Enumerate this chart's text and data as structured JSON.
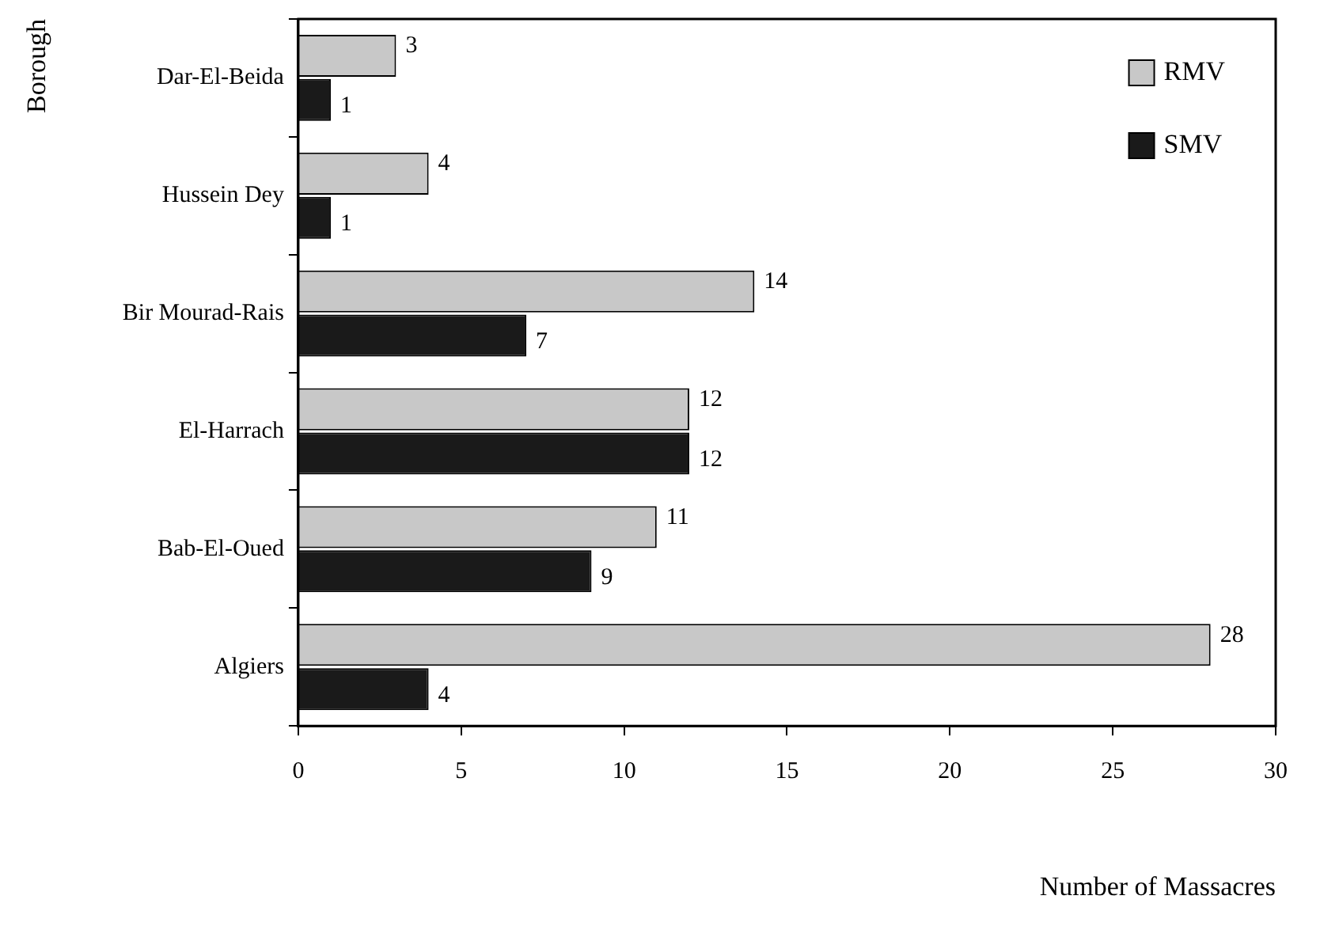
{
  "chart_data": {
    "type": "bar",
    "orientation": "horizontal",
    "xlabel": "Number of Massacres",
    "ylabel": "Borough",
    "categories": [
      "Dar-El-Beida",
      "Hussein Dey",
      "Bir Mourad-Rais",
      "El-Harrach",
      "Bab-El-Oued",
      "Algiers"
    ],
    "series": [
      {
        "name": "RMV",
        "color": "#c8c8c8",
        "values": [
          3,
          4,
          14,
          12,
          11,
          28
        ]
      },
      {
        "name": "SMV",
        "color": "#1a1a1a",
        "values": [
          1,
          1,
          7,
          12,
          9,
          4
        ]
      }
    ],
    "xlim": [
      0,
      30
    ],
    "xticks": [
      0,
      5,
      10,
      15,
      20,
      25,
      30
    ],
    "grid": false,
    "legend": "top right",
    "data_labels": true
  }
}
